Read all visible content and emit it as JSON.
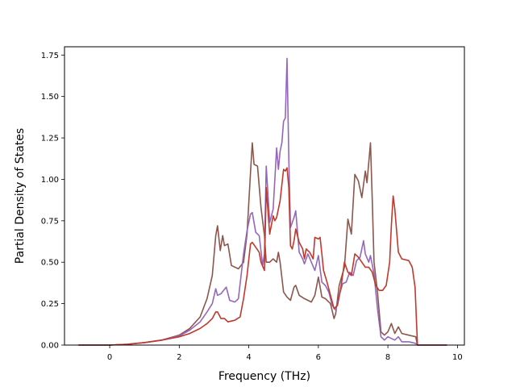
{
  "chart_data": {
    "type": "line",
    "title": "",
    "xlabel": "Frequency (THz)",
    "ylabel": "Partial Density of States",
    "xlim": [
      -1.3,
      10.2
    ],
    "ylim": [
      0,
      1.8
    ],
    "xticks": [
      0,
      2,
      4,
      6,
      8,
      10
    ],
    "xtick_labels": [
      "0",
      "2",
      "4",
      "6",
      "8",
      "10"
    ],
    "yticks": [
      0,
      0.25,
      0.5,
      0.75,
      1.0,
      1.25,
      1.5,
      1.75
    ],
    "ytick_labels": [
      "0.00",
      "0.25",
      "0.50",
      "0.75",
      "1.00",
      "1.25",
      "1.50",
      "1.75"
    ],
    "grid": false,
    "legend": "none",
    "series": [
      {
        "color": "#8c564b",
        "points": [
          [
            -0.9,
            0
          ],
          [
            0,
            0
          ],
          [
            0.5,
            0.005
          ],
          [
            1,
            0.015
          ],
          [
            1.5,
            0.03
          ],
          [
            2,
            0.06
          ],
          [
            2.3,
            0.1
          ],
          [
            2.6,
            0.17
          ],
          [
            2.8,
            0.28
          ],
          [
            2.95,
            0.42
          ],
          [
            3.05,
            0.66
          ],
          [
            3.1,
            0.72
          ],
          [
            3.18,
            0.57
          ],
          [
            3.25,
            0.66
          ],
          [
            3.3,
            0.6
          ],
          [
            3.4,
            0.61
          ],
          [
            3.5,
            0.48
          ],
          [
            3.7,
            0.46
          ],
          [
            3.85,
            0.5
          ],
          [
            3.95,
            0.67
          ],
          [
            4.05,
            1.04
          ],
          [
            4.1,
            1.22
          ],
          [
            4.15,
            1.09
          ],
          [
            4.25,
            1.08
          ],
          [
            4.35,
            0.83
          ],
          [
            4.45,
            0.66
          ],
          [
            4.5,
            0.5
          ],
          [
            4.6,
            0.5
          ],
          [
            4.7,
            0.52
          ],
          [
            4.8,
            0.5
          ],
          [
            4.85,
            0.56
          ],
          [
            4.9,
            0.5
          ],
          [
            5.0,
            0.32
          ],
          [
            5.1,
            0.29
          ],
          [
            5.2,
            0.27
          ],
          [
            5.3,
            0.35
          ],
          [
            5.35,
            0.36
          ],
          [
            5.45,
            0.3
          ],
          [
            5.6,
            0.28
          ],
          [
            5.7,
            0.27
          ],
          [
            5.8,
            0.26
          ],
          [
            5.9,
            0.3
          ],
          [
            6.0,
            0.41
          ],
          [
            6.1,
            0.29
          ],
          [
            6.2,
            0.28
          ],
          [
            6.35,
            0.25
          ],
          [
            6.45,
            0.16
          ],
          [
            6.5,
            0.19
          ],
          [
            6.6,
            0.36
          ],
          [
            6.75,
            0.47
          ],
          [
            6.85,
            0.76
          ],
          [
            6.95,
            0.67
          ],
          [
            7.05,
            1.03
          ],
          [
            7.15,
            0.99
          ],
          [
            7.25,
            0.89
          ],
          [
            7.35,
            1.05
          ],
          [
            7.4,
            0.98
          ],
          [
            7.5,
            1.22
          ],
          [
            7.55,
            0.88
          ],
          [
            7.6,
            0.5
          ],
          [
            7.7,
            0.32
          ],
          [
            7.8,
            0.08
          ],
          [
            7.9,
            0.06
          ],
          [
            8.0,
            0.08
          ],
          [
            8.1,
            0.13
          ],
          [
            8.2,
            0.07
          ],
          [
            8.3,
            0.11
          ],
          [
            8.4,
            0.07
          ],
          [
            8.6,
            0.06
          ],
          [
            8.8,
            0.05
          ],
          [
            8.85,
            0
          ],
          [
            9.7,
            0
          ]
        ]
      },
      {
        "color": "#9467bd",
        "points": [
          [
            -0.9,
            0
          ],
          [
            0,
            0
          ],
          [
            0.5,
            0.005
          ],
          [
            1,
            0.015
          ],
          [
            1.5,
            0.03
          ],
          [
            2,
            0.055
          ],
          [
            2.3,
            0.09
          ],
          [
            2.6,
            0.14
          ],
          [
            2.8,
            0.2
          ],
          [
            2.95,
            0.25
          ],
          [
            3.05,
            0.34
          ],
          [
            3.1,
            0.3
          ],
          [
            3.2,
            0.31
          ],
          [
            3.35,
            0.35
          ],
          [
            3.45,
            0.27
          ],
          [
            3.6,
            0.26
          ],
          [
            3.7,
            0.28
          ],
          [
            3.85,
            0.55
          ],
          [
            3.95,
            0.69
          ],
          [
            4.05,
            0.79
          ],
          [
            4.1,
            0.8
          ],
          [
            4.2,
            0.68
          ],
          [
            4.3,
            0.66
          ],
          [
            4.4,
            0.48
          ],
          [
            4.45,
            0.55
          ],
          [
            4.5,
            1.08
          ],
          [
            4.6,
            0.74
          ],
          [
            4.7,
            0.82
          ],
          [
            4.8,
            1.19
          ],
          [
            4.85,
            1.06
          ],
          [
            4.9,
            1.17
          ],
          [
            4.95,
            1.22
          ],
          [
            5.0,
            1.35
          ],
          [
            5.05,
            1.37
          ],
          [
            5.1,
            1.73
          ],
          [
            5.15,
            1.13
          ],
          [
            5.2,
            0.71
          ],
          [
            5.3,
            0.77
          ],
          [
            5.35,
            0.81
          ],
          [
            5.45,
            0.56
          ],
          [
            5.55,
            0.52
          ],
          [
            5.6,
            0.49
          ],
          [
            5.7,
            0.55
          ],
          [
            5.8,
            0.5
          ],
          [
            5.9,
            0.45
          ],
          [
            6.0,
            0.54
          ],
          [
            6.1,
            0.38
          ],
          [
            6.2,
            0.36
          ],
          [
            6.3,
            0.32
          ],
          [
            6.4,
            0.24
          ],
          [
            6.5,
            0.21
          ],
          [
            6.6,
            0.3
          ],
          [
            6.7,
            0.37
          ],
          [
            6.8,
            0.38
          ],
          [
            6.9,
            0.44
          ],
          [
            7.0,
            0.42
          ],
          [
            7.1,
            0.51
          ],
          [
            7.2,
            0.53
          ],
          [
            7.3,
            0.63
          ],
          [
            7.35,
            0.55
          ],
          [
            7.45,
            0.5
          ],
          [
            7.5,
            0.54
          ],
          [
            7.6,
            0.43
          ],
          [
            7.7,
            0.22
          ],
          [
            7.8,
            0.05
          ],
          [
            7.9,
            0.03
          ],
          [
            8.0,
            0.05
          ],
          [
            8.1,
            0.04
          ],
          [
            8.2,
            0.03
          ],
          [
            8.3,
            0.05
          ],
          [
            8.4,
            0.02
          ],
          [
            8.6,
            0.02
          ],
          [
            8.8,
            0.01
          ],
          [
            8.85,
            0
          ],
          [
            9.7,
            0
          ]
        ]
      },
      {
        "color": "#c0392b",
        "points": [
          [
            -0.9,
            0
          ],
          [
            0,
            0
          ],
          [
            0.5,
            0.005
          ],
          [
            1,
            0.015
          ],
          [
            1.5,
            0.03
          ],
          [
            2,
            0.05
          ],
          [
            2.3,
            0.07
          ],
          [
            2.6,
            0.1
          ],
          [
            2.8,
            0.13
          ],
          [
            2.95,
            0.16
          ],
          [
            3.05,
            0.2
          ],
          [
            3.1,
            0.2
          ],
          [
            3.2,
            0.16
          ],
          [
            3.3,
            0.16
          ],
          [
            3.4,
            0.14
          ],
          [
            3.6,
            0.15
          ],
          [
            3.75,
            0.17
          ],
          [
            3.85,
            0.28
          ],
          [
            3.95,
            0.42
          ],
          [
            4.05,
            0.61
          ],
          [
            4.1,
            0.62
          ],
          [
            4.2,
            0.59
          ],
          [
            4.3,
            0.56
          ],
          [
            4.35,
            0.5
          ],
          [
            4.45,
            0.45
          ],
          [
            4.5,
            0.95
          ],
          [
            4.6,
            0.67
          ],
          [
            4.7,
            0.78
          ],
          [
            4.75,
            0.75
          ],
          [
            4.8,
            0.77
          ],
          [
            4.9,
            0.87
          ],
          [
            5.0,
            1.06
          ],
          [
            5.05,
            1.05
          ],
          [
            5.1,
            1.07
          ],
          [
            5.15,
            0.95
          ],
          [
            5.2,
            0.6
          ],
          [
            5.25,
            0.58
          ],
          [
            5.3,
            0.63
          ],
          [
            5.35,
            0.7
          ],
          [
            5.45,
            0.62
          ],
          [
            5.55,
            0.58
          ],
          [
            5.6,
            0.52
          ],
          [
            5.65,
            0.58
          ],
          [
            5.75,
            0.56
          ],
          [
            5.85,
            0.52
          ],
          [
            5.9,
            0.65
          ],
          [
            6.0,
            0.64
          ],
          [
            6.05,
            0.65
          ],
          [
            6.1,
            0.55
          ],
          [
            6.15,
            0.45
          ],
          [
            6.25,
            0.38
          ],
          [
            6.35,
            0.3
          ],
          [
            6.45,
            0.22
          ],
          [
            6.55,
            0.24
          ],
          [
            6.65,
            0.35
          ],
          [
            6.75,
            0.5
          ],
          [
            6.85,
            0.44
          ],
          [
            6.95,
            0.42
          ],
          [
            7.05,
            0.55
          ],
          [
            7.15,
            0.53
          ],
          [
            7.25,
            0.5
          ],
          [
            7.35,
            0.47
          ],
          [
            7.45,
            0.47
          ],
          [
            7.55,
            0.44
          ],
          [
            7.65,
            0.36
          ],
          [
            7.75,
            0.33
          ],
          [
            7.85,
            0.33
          ],
          [
            7.95,
            0.36
          ],
          [
            8.05,
            0.5
          ],
          [
            8.1,
            0.72
          ],
          [
            8.15,
            0.9
          ],
          [
            8.2,
            0.82
          ],
          [
            8.3,
            0.56
          ],
          [
            8.4,
            0.52
          ],
          [
            8.6,
            0.51
          ],
          [
            8.7,
            0.47
          ],
          [
            8.78,
            0.35
          ],
          [
            8.85,
            0
          ],
          [
            9.7,
            0
          ]
        ]
      }
    ]
  }
}
